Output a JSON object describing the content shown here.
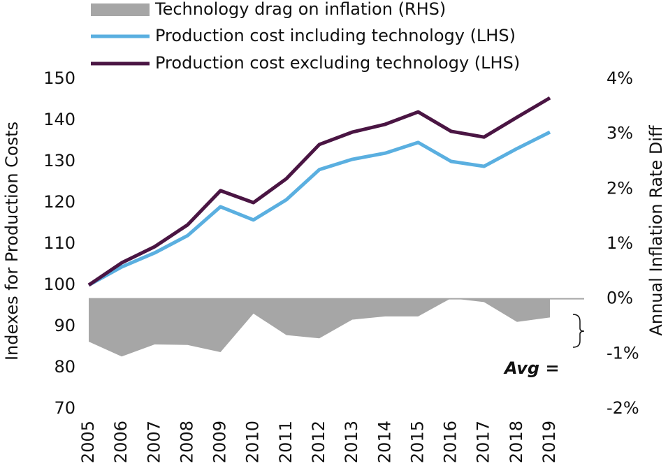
{
  "chart_data": {
    "type": "line",
    "categories": [
      "2005",
      "2006",
      "2007",
      "2008",
      "2009",
      "2010",
      "2011",
      "2012",
      "2013",
      "2014",
      "2015",
      "2016",
      "2017",
      "2018",
      "2019"
    ],
    "series": [
      {
        "name": "Technology drag on inflation (RHS)",
        "type": "area",
        "axis": "y2",
        "color": "#a6a6a6",
        "values": [
          -0.78,
          -1.05,
          -0.83,
          -0.84,
          -0.97,
          -0.27,
          -0.66,
          -0.72,
          -0.38,
          -0.32,
          -0.32,
          0.01,
          -0.06,
          -0.42,
          -0.34
        ]
      },
      {
        "name": "Production cost including technology (LHS)",
        "type": "line",
        "color": "#5aafe0",
        "values": [
          100,
          104.4,
          107.8,
          112,
          119,
          115.8,
          120.7,
          128,
          130.5,
          132,
          134.6,
          130,
          128.8,
          133.1,
          137.1
        ]
      },
      {
        "name": "Production cost excluding technology (LHS)",
        "type": "line",
        "color": "#4a1543",
        "values": [
          100,
          105.4,
          109.3,
          114.6,
          122.9,
          120,
          125.8,
          134.1,
          137.1,
          139,
          142,
          137.3,
          135.9,
          140.7,
          145.4
        ]
      }
    ],
    "ylabel": "Indexes for Production Costs",
    "y2label": "Annual Inflation Rate Diff",
    "ylim": [
      70,
      150
    ],
    "yticks": [
      70,
      80,
      90,
      100,
      110,
      120,
      130,
      140,
      150
    ],
    "y2lim": [
      -2,
      4
    ],
    "y2ticks": [
      {
        "value": -2,
        "label": "-2%"
      },
      {
        "value": -1,
        "label": "-1%"
      },
      {
        "value": 0,
        "label": "0%"
      },
      {
        "value": 1,
        "label": "1%"
      },
      {
        "value": 2,
        "label": "2%"
      },
      {
        "value": 3,
        "label": "3%"
      },
      {
        "value": 4,
        "label": "4%"
      }
    ],
    "annotation": "Avg =",
    "grid": false
  }
}
